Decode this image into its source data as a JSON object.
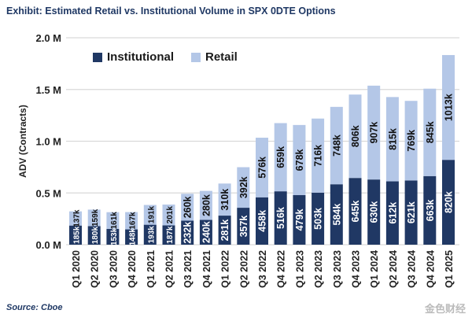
{
  "chart_data": {
    "type": "bar",
    "stacked": true,
    "title": "Exhibit: Estimated Retail vs. Institutional Volume in SPX 0DTE Options",
    "ylabel": "ADV (Contracts)",
    "xlabel": "",
    "ylim": [
      0,
      2000
    ],
    "yticks": [
      "0.0 M",
      "0.5 M",
      "1.0 M",
      "1.5 M",
      "2.0 M"
    ],
    "grid": true,
    "legend_position": "top-left",
    "categories": [
      "Q1 2020",
      "Q2 2020",
      "Q3 2020",
      "Q4 2020",
      "Q1 2021",
      "Q2 2021",
      "Q3 2021",
      "Q4 2021",
      "Q1 2022",
      "Q2 2022",
      "Q3 2022",
      "Q4 2022",
      "Q1 2023",
      "Q2 2023",
      "Q3 2023",
      "Q4 2023",
      "Q1 2024",
      "Q2 2024",
      "Q3 2024",
      "Q4 2024",
      "Q1 2025"
    ],
    "series": [
      {
        "name": "Institutional",
        "color": "#203864",
        "values": [
          185,
          180,
          153,
          148,
          193,
          187,
          232,
          240,
          281,
          357,
          458,
          516,
          479,
          503,
          584,
          645,
          630,
          612,
          621,
          663,
          820
        ]
      },
      {
        "name": "Retail",
        "color": "#b4c7e7",
        "values": [
          137,
          159,
          161,
          167,
          191,
          201,
          260,
          280,
          310,
          392,
          576,
          659,
          678,
          716,
          748,
          806,
          907,
          815,
          769,
          845,
          1013
        ]
      }
    ],
    "data_label_suffix": "k",
    "source": "Source: Cboe"
  },
  "watermark": "金色财经"
}
